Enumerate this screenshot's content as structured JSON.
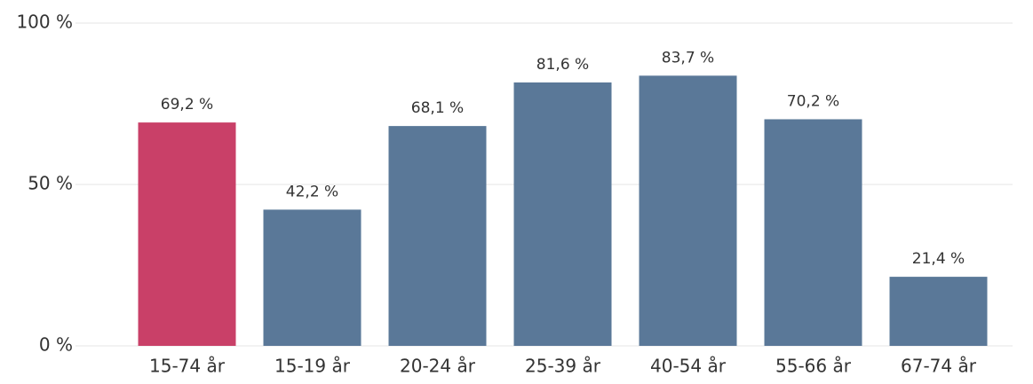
{
  "chart_data": {
    "type": "bar",
    "categories": [
      "15-74 år",
      "15-19 år",
      "20-24 år",
      "25-39 år",
      "40-54 år",
      "55-66 år",
      "67-74 år"
    ],
    "values": [
      69.2,
      42.2,
      68.1,
      81.6,
      83.7,
      70.2,
      21.4
    ],
    "value_labels": [
      "69,2 %",
      "42,2 %",
      "68,1 %",
      "81,6 %",
      "83,7 %",
      "70,2 %",
      "21,4 %"
    ],
    "colors": [
      "#c94068",
      "#5a7898",
      "#5a7898",
      "#5a7898",
      "#5a7898",
      "#5a7898",
      "#5a7898"
    ],
    "ylim": [
      0,
      100
    ],
    "yticks": [
      {
        "value": 0,
        "label": "0 %"
      },
      {
        "value": 50,
        "label": "50 %"
      },
      {
        "value": 100,
        "label": "100 %"
      }
    ],
    "grid": true
  }
}
